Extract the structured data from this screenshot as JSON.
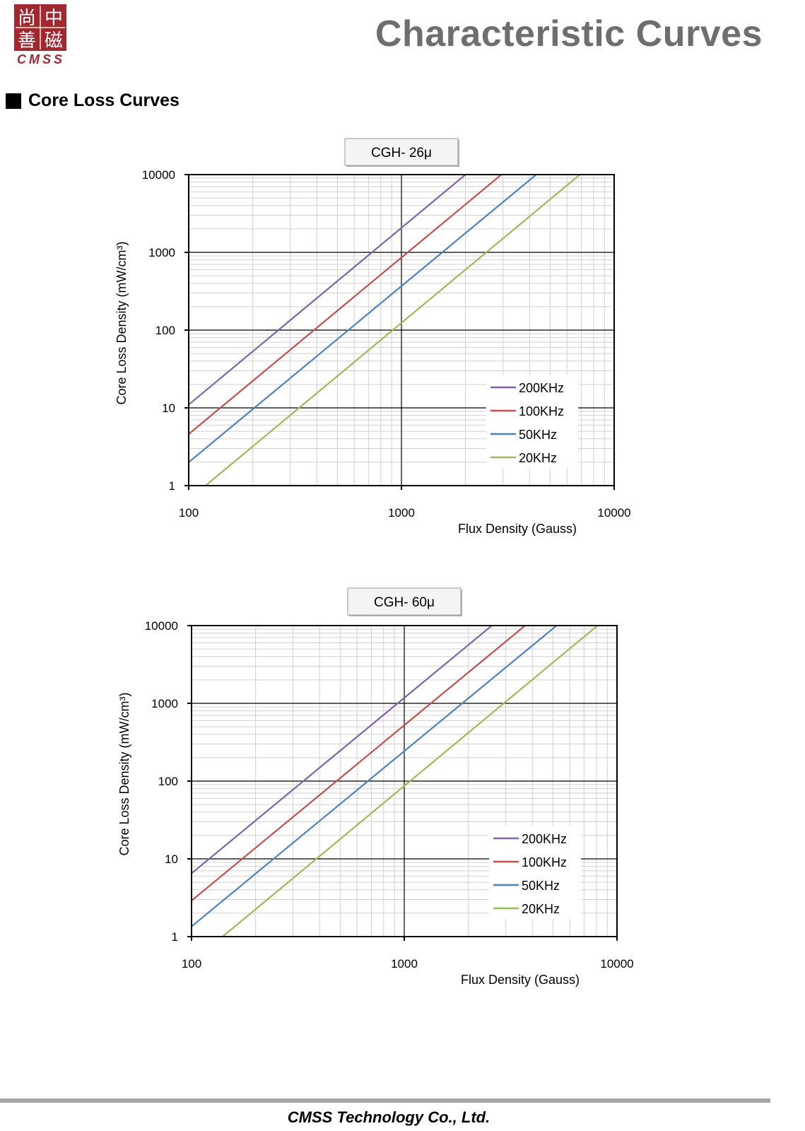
{
  "header": {
    "logo_chars": [
      "尚",
      "中",
      "善",
      "磁"
    ],
    "logo_text": "CMSS",
    "title": "Characteristic Curves"
  },
  "section": {
    "title": "Core Loss Curves"
  },
  "colors": {
    "logo_red": "#a0282f",
    "grid_minor": "#d0d0d0",
    "grid_major": "#000000"
  },
  "chart_data": [
    {
      "type": "line",
      "title": "CGH- 26μ",
      "xlabel": "Flux Density (Gauss)",
      "ylabel": "Core Loss Density (mW/cm³)",
      "xscale": "log",
      "yscale": "log",
      "xlim": [
        100,
        10000
      ],
      "ylim": [
        1,
        10000
      ],
      "xticks": [
        "100",
        "1000",
        "10000"
      ],
      "yticks": [
        "1",
        "10",
        "100",
        "1000",
        "10000"
      ],
      "grid": true,
      "legend_position": "bottom-right",
      "series": [
        {
          "name": "200KHz",
          "color": "#7f63a7",
          "x": [
            100,
            2000
          ],
          "y": [
            11,
            10000
          ]
        },
        {
          "name": "100KHz",
          "color": "#c0504d",
          "x": [
            100,
            2950
          ],
          "y": [
            4.6,
            10000
          ]
        },
        {
          "name": "50KHz",
          "color": "#4f81bd",
          "x": [
            100,
            4300
          ],
          "y": [
            2,
            10000
          ]
        },
        {
          "name": "20KHz",
          "color": "#9bbb59",
          "x": [
            120,
            6900
          ],
          "y": [
            1,
            10000
          ]
        }
      ]
    },
    {
      "type": "line",
      "title": "CGH- 60μ",
      "xlabel": "Flux Density (Gauss)",
      "ylabel": "Core Loss Density (mW/cm³)",
      "xscale": "log",
      "yscale": "log",
      "xlim": [
        100,
        10000
      ],
      "ylim": [
        1,
        10000
      ],
      "xticks": [
        "100",
        "1000",
        "10000"
      ],
      "yticks": [
        "1",
        "10",
        "100",
        "1000",
        "10000"
      ],
      "grid": true,
      "legend_position": "bottom-right",
      "series": [
        {
          "name": "200KHz",
          "color": "#7f63a7",
          "x": [
            100,
            2580
          ],
          "y": [
            6.5,
            10000
          ]
        },
        {
          "name": "100KHz",
          "color": "#c0504d",
          "x": [
            100,
            3700
          ],
          "y": [
            2.9,
            10000
          ]
        },
        {
          "name": "50KHz",
          "color": "#4f81bd",
          "x": [
            100,
            5200
          ],
          "y": [
            1.35,
            10000
          ]
        },
        {
          "name": "20KHz",
          "color": "#9bbb59",
          "x": [
            140,
            8100
          ],
          "y": [
            1,
            10000
          ]
        }
      ]
    }
  ],
  "footer": {
    "company": "CMSS Technology Co., Ltd."
  }
}
